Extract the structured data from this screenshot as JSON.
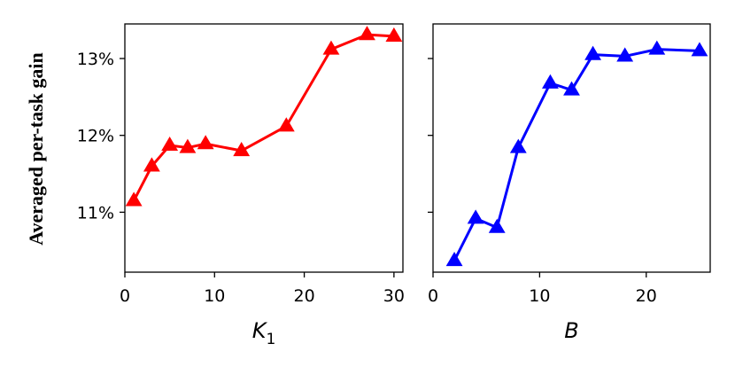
{
  "shared_ylabel": "Averaged per-task gain",
  "chart_data": [
    {
      "type": "line",
      "xlabel": "K",
      "xlabel_subscript": "1",
      "ylabel": "Averaged per-task gain",
      "xlim": [
        0,
        31
      ],
      "ylim": [
        10.22,
        13.45
      ],
      "xticks": [
        0,
        10,
        20,
        30
      ],
      "yticks": [
        11,
        12,
        13
      ],
      "ytick_labels": [
        "11%",
        "12%",
        "13%"
      ],
      "grid": false,
      "color": "#ff0000",
      "marker": "triangle",
      "series": [
        {
          "x": [
            1,
            3,
            5,
            7,
            9,
            13,
            18,
            23,
            27,
            30
          ],
          "values": [
            11.15,
            11.6,
            11.87,
            11.84,
            11.89,
            11.8,
            12.12,
            13.12,
            13.31,
            13.29
          ]
        }
      ]
    },
    {
      "type": "line",
      "xlabel": "B",
      "xlabel_subscript": "",
      "ylabel": "",
      "xlim": [
        0,
        26
      ],
      "ylim": [
        10.22,
        13.45
      ],
      "xticks": [
        0,
        10,
        20
      ],
      "yticks": [
        11,
        12,
        13
      ],
      "ytick_labels": [
        "",
        "",
        ""
      ],
      "grid": false,
      "color": "#0000ff",
      "marker": "triangle",
      "series": [
        {
          "x": [
            2,
            4,
            6,
            8,
            11,
            13,
            15,
            18,
            21,
            25
          ],
          "values": [
            10.37,
            10.92,
            10.8,
            11.84,
            12.68,
            12.59,
            13.05,
            13.03,
            13.12,
            13.1
          ]
        }
      ]
    }
  ]
}
